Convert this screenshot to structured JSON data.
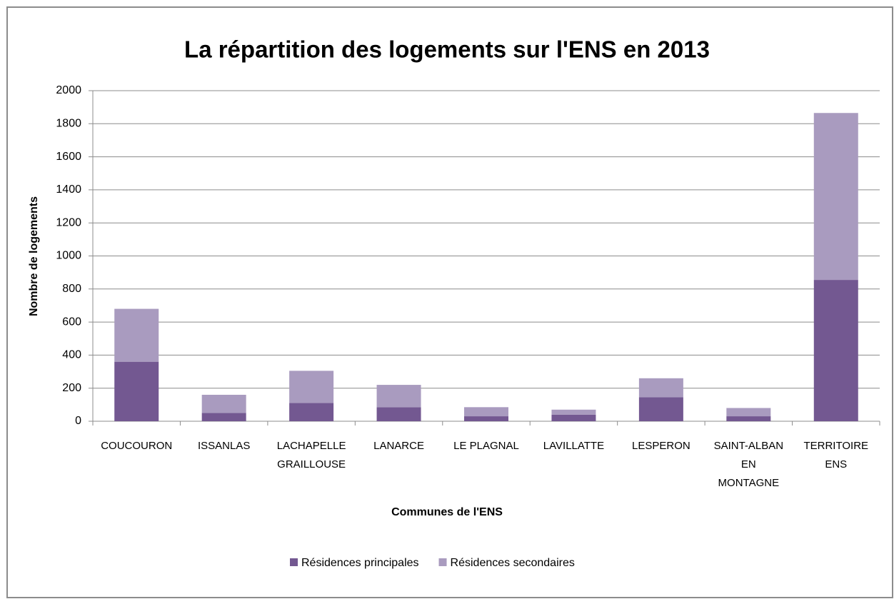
{
  "chart_data": {
    "type": "stacked_bar",
    "title": "La répartition des logements sur l'ENS en 2013",
    "x_label": "Communes de l'ENS",
    "y_label": "Nombre de logements",
    "categories": [
      "COUCOURON",
      "ISSANLAS",
      "LACHAPELLE GRAILLOUSE",
      "LANARCE",
      "LE PLAGNAL",
      "LAVILLATTE",
      "LESPERON",
      "SAINT-ALBAN EN MONTAGNE",
      "TERRITOIRE ENS"
    ],
    "series": [
      {
        "name": "Résidences principales",
        "color": "#735891",
        "values": [
          360,
          50,
          110,
          85,
          30,
          40,
          145,
          30,
          855
        ]
      },
      {
        "name": "Résidences secondaires",
        "color": "#a99bbf",
        "values": [
          320,
          110,
          195,
          135,
          55,
          30,
          115,
          50,
          1010
        ]
      }
    ],
    "ylim": [
      0,
      2000
    ],
    "yticks": [
      0,
      200,
      400,
      600,
      800,
      1000,
      1200,
      1400,
      1600,
      1800,
      2000
    ],
    "grid": true,
    "legend": "bottom"
  }
}
